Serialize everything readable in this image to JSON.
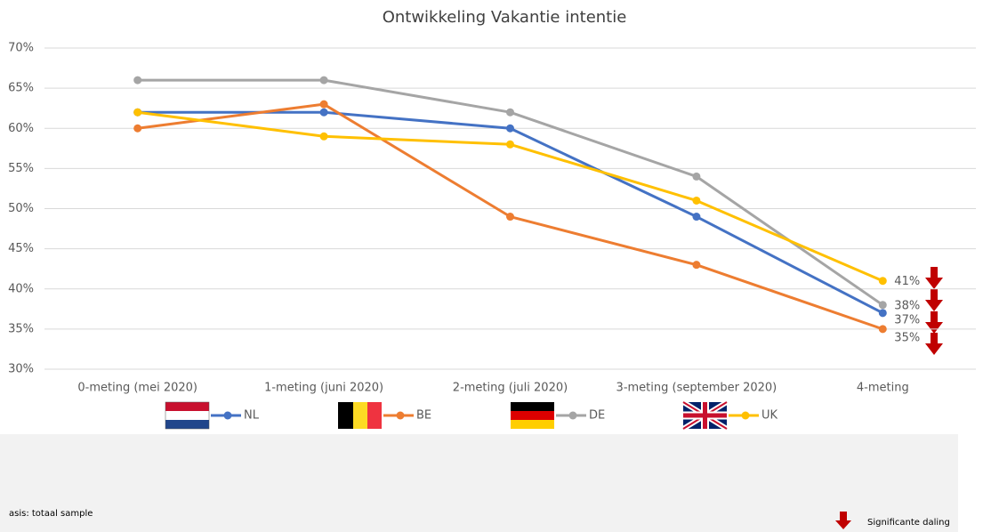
{
  "chart_data": {
    "type": "line",
    "title": "Ontwikkeling Vakantie intentie",
    "categories": [
      "0-meting (mei 2020)",
      "1-meting (juni 2020)",
      "2-meting (juli 2020)",
      "3-meting (september 2020)",
      "4-meting"
    ],
    "series": [
      {
        "name": "NL",
        "color": "#4472c4",
        "values": [
          62,
          62,
          60,
          49,
          37
        ],
        "value_labels": [
          null,
          null,
          null,
          null,
          "37%"
        ]
      },
      {
        "name": "BE",
        "color": "#ed7d31",
        "values": [
          60,
          63,
          49,
          43,
          35
        ],
        "value_labels": [
          null,
          null,
          null,
          null,
          "35%"
        ]
      },
      {
        "name": "DE",
        "color": "#a5a5a5",
        "values": [
          66,
          66,
          62,
          54,
          38
        ],
        "value_labels": [
          null,
          null,
          null,
          null,
          "38%"
        ]
      },
      {
        "name": "UK",
        "color": "#ffc000",
        "values": [
          62,
          59,
          58,
          51,
          41
        ],
        "value_labels": [
          null,
          null,
          null,
          null,
          "41%"
        ]
      }
    ],
    "ylim": [
      30,
      70
    ],
    "yticks": [
      {
        "value": 30,
        "label": "30%"
      },
      {
        "value": 35,
        "label": "35%"
      },
      {
        "value": 40,
        "label": "40%"
      },
      {
        "value": 45,
        "label": "45%"
      },
      {
        "value": 50,
        "label": "50%"
      },
      {
        "value": 55,
        "label": "55%"
      },
      {
        "value": 60,
        "label": "60%"
      },
      {
        "value": 65,
        "label": "65%"
      },
      {
        "value": 70,
        "label": "70%"
      }
    ],
    "grid": true,
    "footnote": "asis: totaal sample",
    "arrow_legend": "Significante daling"
  }
}
